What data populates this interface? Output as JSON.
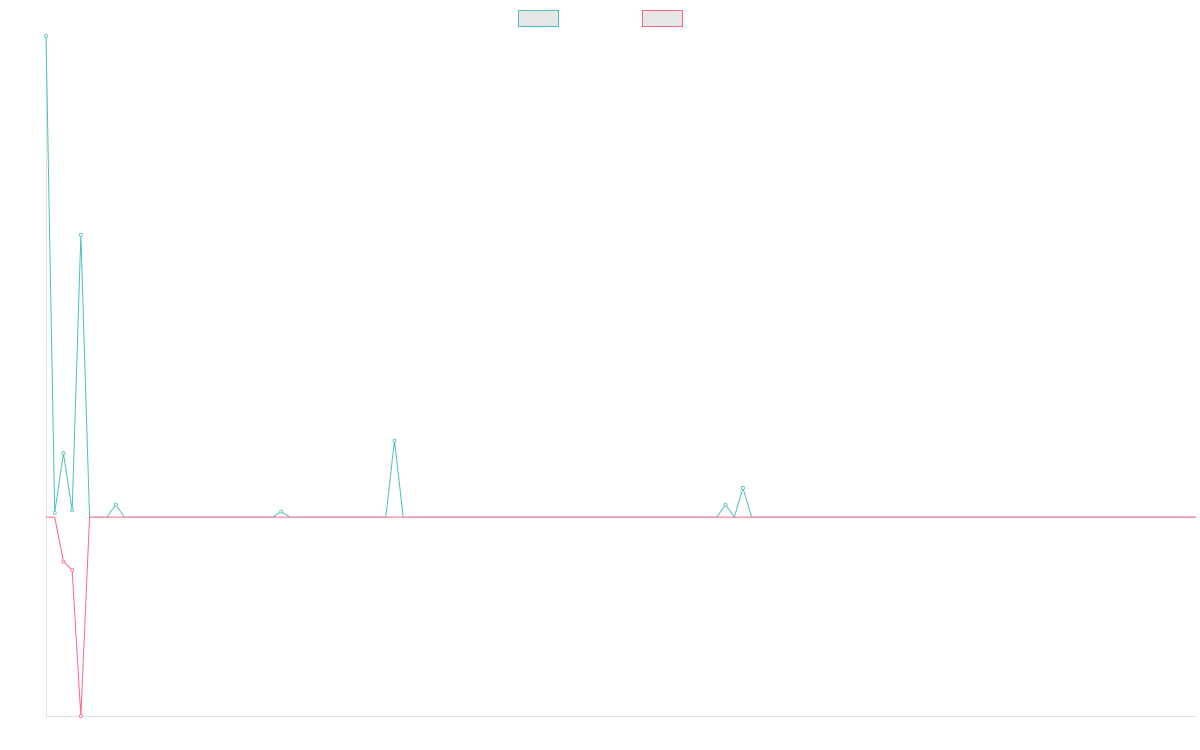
{
  "chart_data": {
    "type": "line",
    "title": "",
    "xlabel": "",
    "ylabel": "",
    "x_count": 133,
    "ylim": [
      -1.43,
      3.46
    ],
    "grid": false,
    "legend_position": "top-center",
    "legend": [
      {
        "label": "",
        "color": "#4bc0c0",
        "fill": "#e6e6e6"
      },
      {
        "label": "",
        "color": "#ff6384",
        "fill": "#e6e6e6"
      }
    ],
    "series": [
      {
        "color": "#4bc0c0",
        "points": [
          [
            0,
            3.46
          ],
          [
            1,
            0.03
          ],
          [
            2,
            0.46
          ],
          [
            3,
            0.05
          ],
          [
            4,
            2.03
          ],
          [
            5,
            0
          ],
          [
            6,
            0
          ],
          [
            7,
            0
          ],
          [
            8,
            0.09
          ],
          [
            9,
            0
          ],
          [
            10,
            0
          ],
          [
            11,
            0
          ],
          [
            12,
            0
          ],
          [
            13,
            0
          ],
          [
            14,
            0
          ],
          [
            15,
            0
          ],
          [
            16,
            0
          ],
          [
            17,
            0
          ],
          [
            18,
            0
          ],
          [
            19,
            0
          ],
          [
            20,
            0
          ],
          [
            21,
            0
          ],
          [
            22,
            0
          ],
          [
            23,
            0
          ],
          [
            24,
            0
          ],
          [
            25,
            0
          ],
          [
            26,
            0
          ],
          [
            27,
            0.04
          ],
          [
            28,
            0
          ],
          [
            29,
            0
          ],
          [
            30,
            0
          ],
          [
            31,
            0
          ],
          [
            32,
            0
          ],
          [
            33,
            0
          ],
          [
            34,
            0
          ],
          [
            35,
            0
          ],
          [
            36,
            0
          ],
          [
            37,
            0
          ],
          [
            38,
            0
          ],
          [
            39,
            0
          ],
          [
            40,
            0.55
          ],
          [
            41,
            0
          ],
          [
            42,
            0
          ],
          [
            43,
            0
          ],
          [
            44,
            0
          ],
          [
            45,
            0
          ],
          [
            46,
            0
          ],
          [
            47,
            0
          ],
          [
            48,
            0
          ],
          [
            49,
            0
          ],
          [
            50,
            0
          ],
          [
            51,
            0
          ],
          [
            52,
            0
          ],
          [
            53,
            0
          ],
          [
            54,
            0
          ],
          [
            55,
            0
          ],
          [
            56,
            0
          ],
          [
            57,
            0
          ],
          [
            58,
            0
          ],
          [
            59,
            0
          ],
          [
            60,
            0
          ],
          [
            61,
            0
          ],
          [
            62,
            0
          ],
          [
            63,
            0
          ],
          [
            64,
            0
          ],
          [
            65,
            0
          ],
          [
            66,
            0
          ],
          [
            67,
            0
          ],
          [
            68,
            0
          ],
          [
            69,
            0
          ],
          [
            70,
            0
          ],
          [
            71,
            0
          ],
          [
            72,
            0
          ],
          [
            73,
            0
          ],
          [
            74,
            0
          ],
          [
            75,
            0
          ],
          [
            76,
            0
          ],
          [
            77,
            0
          ],
          [
            78,
            0.09
          ],
          [
            79,
            0
          ],
          [
            80,
            0.21
          ],
          [
            81,
            0
          ],
          [
            82,
            0
          ],
          [
            83,
            0
          ],
          [
            84,
            0
          ],
          [
            85,
            0
          ],
          [
            86,
            0
          ],
          [
            87,
            0
          ],
          [
            88,
            0
          ],
          [
            89,
            0
          ],
          [
            90,
            0
          ],
          [
            91,
            0
          ],
          [
            92,
            0
          ],
          [
            93,
            0
          ],
          [
            94,
            0
          ],
          [
            95,
            0
          ],
          [
            96,
            0
          ],
          [
            97,
            0
          ],
          [
            98,
            0
          ],
          [
            99,
            0
          ],
          [
            100,
            0
          ],
          [
            101,
            0
          ],
          [
            102,
            0
          ],
          [
            103,
            0
          ],
          [
            104,
            0
          ],
          [
            105,
            0
          ],
          [
            106,
            0
          ],
          [
            107,
            0
          ],
          [
            108,
            0
          ],
          [
            109,
            0
          ],
          [
            110,
            0
          ],
          [
            111,
            0
          ],
          [
            112,
            0
          ],
          [
            113,
            0
          ],
          [
            114,
            0
          ],
          [
            115,
            0
          ],
          [
            116,
            0
          ],
          [
            117,
            0
          ],
          [
            118,
            0
          ],
          [
            119,
            0
          ],
          [
            120,
            0
          ],
          [
            121,
            0
          ],
          [
            122,
            0
          ],
          [
            123,
            0
          ],
          [
            124,
            0
          ],
          [
            125,
            0
          ],
          [
            126,
            0
          ],
          [
            127,
            0
          ],
          [
            128,
            0
          ],
          [
            129,
            0
          ],
          [
            130,
            0
          ],
          [
            131,
            0
          ],
          [
            132,
            0
          ]
        ]
      },
      {
        "color": "#ff6384",
        "points": [
          [
            0,
            0
          ],
          [
            1,
            0
          ],
          [
            2,
            -0.32
          ],
          [
            3,
            -0.38
          ],
          [
            4,
            -1.43
          ],
          [
            5,
            0
          ],
          [
            6,
            0
          ],
          [
            7,
            0
          ],
          [
            8,
            0
          ],
          [
            9,
            0
          ],
          [
            10,
            0
          ],
          [
            11,
            0
          ],
          [
            12,
            0
          ],
          [
            13,
            0
          ],
          [
            14,
            0
          ],
          [
            15,
            0
          ],
          [
            16,
            0
          ],
          [
            17,
            0
          ],
          [
            18,
            0
          ],
          [
            19,
            0
          ],
          [
            20,
            0
          ],
          [
            21,
            0
          ],
          [
            22,
            0
          ],
          [
            23,
            0
          ],
          [
            24,
            0
          ],
          [
            25,
            0
          ],
          [
            26,
            0
          ],
          [
            27,
            0
          ],
          [
            28,
            0
          ],
          [
            29,
            0
          ],
          [
            30,
            0
          ],
          [
            31,
            0
          ],
          [
            32,
            0
          ],
          [
            33,
            0
          ],
          [
            34,
            0
          ],
          [
            35,
            0
          ],
          [
            36,
            0
          ],
          [
            37,
            0
          ],
          [
            38,
            0
          ],
          [
            39,
            0
          ],
          [
            40,
            0
          ],
          [
            41,
            0
          ],
          [
            42,
            0
          ],
          [
            43,
            0
          ],
          [
            44,
            0
          ],
          [
            45,
            0
          ],
          [
            46,
            0
          ],
          [
            47,
            0
          ],
          [
            48,
            0
          ],
          [
            49,
            0
          ],
          [
            50,
            0
          ],
          [
            51,
            0
          ],
          [
            52,
            0
          ],
          [
            53,
            0
          ],
          [
            54,
            0
          ],
          [
            55,
            0
          ],
          [
            56,
            0
          ],
          [
            57,
            0
          ],
          [
            58,
            0
          ],
          [
            59,
            0
          ],
          [
            60,
            0
          ],
          [
            61,
            0
          ],
          [
            62,
            0
          ],
          [
            63,
            0
          ],
          [
            64,
            0
          ],
          [
            65,
            0
          ],
          [
            66,
            0
          ],
          [
            67,
            0
          ],
          [
            68,
            0
          ],
          [
            69,
            0
          ],
          [
            70,
            0
          ],
          [
            71,
            0
          ],
          [
            72,
            0
          ],
          [
            73,
            0
          ],
          [
            74,
            0
          ],
          [
            75,
            0
          ],
          [
            76,
            0
          ],
          [
            77,
            0
          ],
          [
            78,
            0
          ],
          [
            79,
            0
          ],
          [
            80,
            0
          ],
          [
            81,
            0
          ],
          [
            82,
            0
          ],
          [
            83,
            0
          ],
          [
            84,
            0
          ],
          [
            85,
            0
          ],
          [
            86,
            0
          ],
          [
            87,
            0
          ],
          [
            88,
            0
          ],
          [
            89,
            0
          ],
          [
            90,
            0
          ],
          [
            91,
            0
          ],
          [
            92,
            0
          ],
          [
            93,
            0
          ],
          [
            94,
            0
          ],
          [
            95,
            0
          ],
          [
            96,
            0
          ],
          [
            97,
            0
          ],
          [
            98,
            0
          ],
          [
            99,
            0
          ],
          [
            100,
            0
          ],
          [
            101,
            0
          ],
          [
            102,
            0
          ],
          [
            103,
            0
          ],
          [
            104,
            0
          ],
          [
            105,
            0
          ],
          [
            106,
            0
          ],
          [
            107,
            0
          ],
          [
            108,
            0
          ],
          [
            109,
            0
          ],
          [
            110,
            0
          ],
          [
            111,
            0
          ],
          [
            112,
            0
          ],
          [
            113,
            0
          ],
          [
            114,
            0
          ],
          [
            115,
            0
          ],
          [
            116,
            0
          ],
          [
            117,
            0
          ],
          [
            118,
            0
          ],
          [
            119,
            0
          ],
          [
            120,
            0
          ],
          [
            121,
            0
          ],
          [
            122,
            0
          ],
          [
            123,
            0
          ],
          [
            124,
            0
          ],
          [
            125,
            0
          ],
          [
            126,
            0
          ],
          [
            127,
            0
          ],
          [
            128,
            0
          ],
          [
            129,
            0
          ],
          [
            130,
            0
          ],
          [
            131,
            0
          ],
          [
            132,
            0
          ]
        ]
      }
    ]
  }
}
